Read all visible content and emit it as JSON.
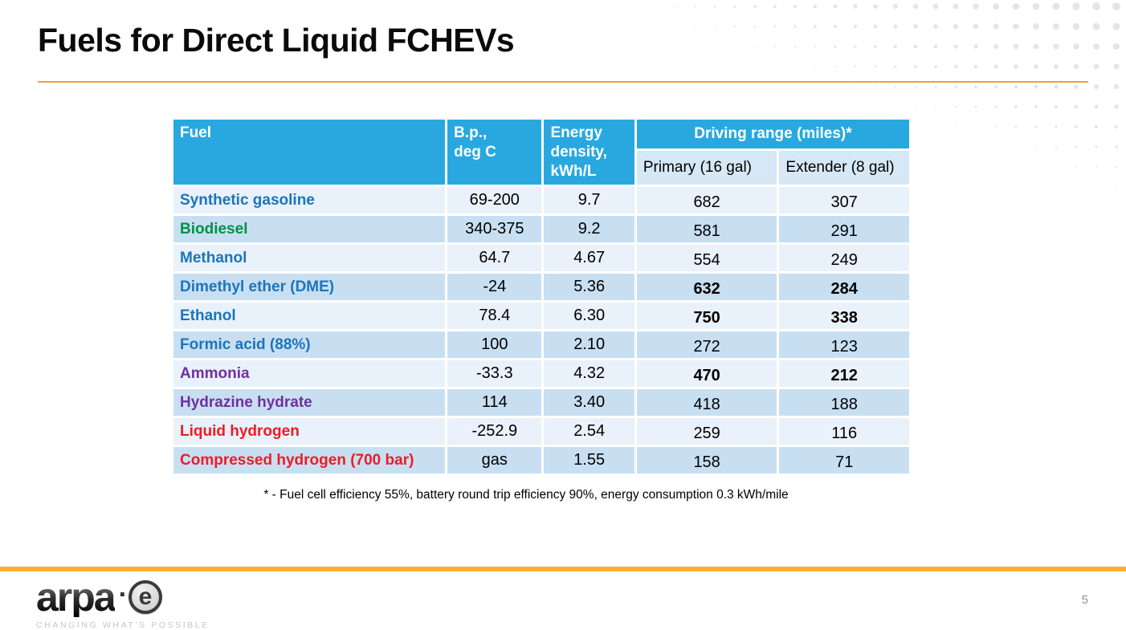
{
  "slide": {
    "title": "Fuels for Direct Liquid FCHEVs",
    "page_number": "5",
    "footnote": "* - Fuel cell efficiency 55%, battery round trip efficiency 90%, energy consumption 0.3 kWh/mile"
  },
  "logo": {
    "word": "arpa",
    "separator": "·",
    "e": "e",
    "tagline": "CHANGING WHAT'S POSSIBLE"
  },
  "table": {
    "header": {
      "fuel": "Fuel",
      "bp": "B.p.,\ndeg C",
      "energy_density": "Energy\ndensity,\nkWh/L",
      "driving_range": "Driving range (miles)*",
      "primary": "Primary (16 gal)",
      "extender": "Extender (8 gal)"
    },
    "rows": [
      {
        "fuel": "Synthetic gasoline",
        "fuel_color": "#1B75BC",
        "bp": "69-200",
        "energy": "9.7",
        "primary": "682",
        "extender": "307",
        "range_bold": false
      },
      {
        "fuel": "Biodiesel",
        "fuel_color": "#009245",
        "bp": "340-375",
        "energy": "9.2",
        "primary": "581",
        "extender": "291",
        "range_bold": false
      },
      {
        "fuel": "Methanol",
        "fuel_color": "#1B75BC",
        "bp": "64.7",
        "energy": "4.67",
        "primary": "554",
        "extender": "249",
        "range_bold": false
      },
      {
        "fuel": "Dimethyl ether (DME)",
        "fuel_color": "#1B75BC",
        "bp": "-24",
        "energy": "5.36",
        "primary": "632",
        "extender": "284",
        "range_bold": true
      },
      {
        "fuel": "Ethanol",
        "fuel_color": "#1B75BC",
        "bp": "78.4",
        "energy": "6.30",
        "primary": "750",
        "extender": "338",
        "range_bold": true
      },
      {
        "fuel": "Formic acid (88%)",
        "fuel_color": "#1B75BC",
        "bp": "100",
        "energy": "2.10",
        "primary": "272",
        "extender": "123",
        "range_bold": false
      },
      {
        "fuel": "Ammonia",
        "fuel_color": "#7030A0",
        "bp": "-33.3",
        "energy": "4.32",
        "primary": "470",
        "extender": "212",
        "range_bold": true
      },
      {
        "fuel": "Hydrazine hydrate",
        "fuel_color": "#7030A0",
        "bp": "114",
        "energy": "3.40",
        "primary": "418",
        "extender": "188",
        "range_bold": false
      },
      {
        "fuel": "Liquid hydrogen",
        "fuel_color": "#ED1C24",
        "bp": "-252.9",
        "energy": "2.54",
        "primary": "259",
        "extender": "116",
        "range_bold": false
      },
      {
        "fuel": "Compressed hydrogen (700 bar)",
        "fuel_color": "#ED1C24",
        "bp": "gas",
        "energy": "1.55",
        "primary": "158",
        "extender": "71",
        "range_bold": false
      }
    ]
  },
  "colors": {
    "header_bg": "#29A8E0",
    "subheader_bg": "#D6E7F5",
    "row_light": "#E9F1FA",
    "row_dark": "#C8DFF2",
    "accent_line_top": "#E8A33C",
    "accent_bar_bottom": "#F9B032",
    "dot_pattern": "#E3E5E7",
    "page_number_gray": "#8A949D"
  }
}
